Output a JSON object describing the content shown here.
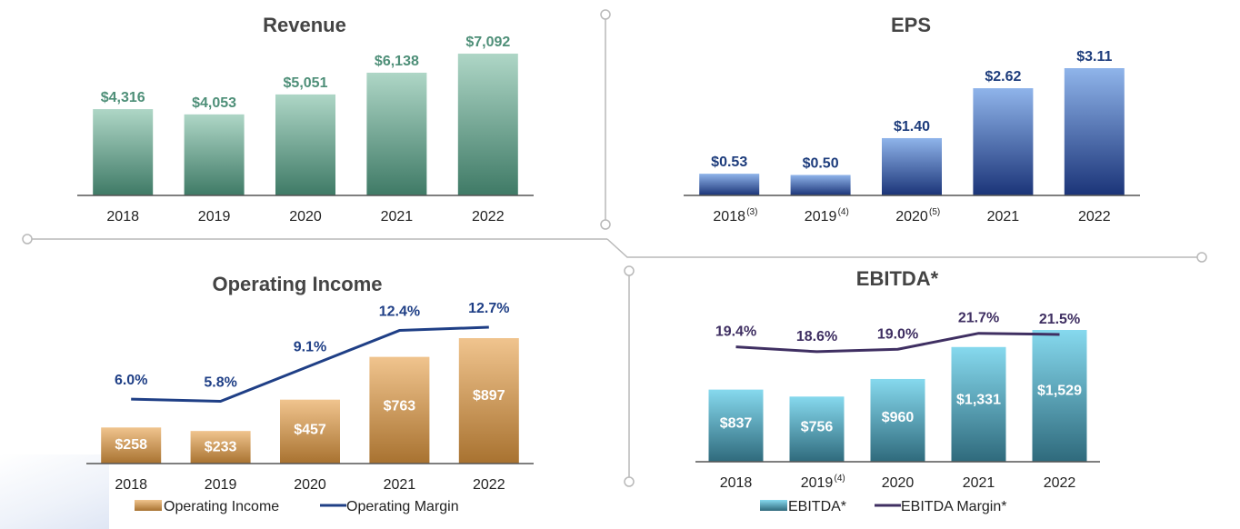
{
  "colors": {
    "revenue_top": "#aed6c6",
    "revenue_bottom": "#3f7a66",
    "revenue_label": "#4e8f78",
    "eps_top": "#8fb4ea",
    "eps_bottom": "#1b3478",
    "eps_label": "#1d3c7c",
    "opinc_top": "#f0c48e",
    "opinc_bottom": "#a87230",
    "opmargin_line": "#1f3f86",
    "ebitda_top": "#86d9ee",
    "ebitda_bottom": "#2f6a7c",
    "ebitda_margin_line": "#3f2f62",
    "divider": "#b9b9b9",
    "title": "#444444",
    "tick": "#222222"
  },
  "chart_data": [
    {
      "type": "bar",
      "title": "Revenue",
      "categories": [
        "2018",
        "2019",
        "2020",
        "2021",
        "2022"
      ],
      "values": [
        4316,
        4053,
        5051,
        6138,
        7092
      ],
      "value_labels": [
        "$4,316",
        "$4,053",
        "$5,051",
        "$6,138",
        "$7,092"
      ],
      "ylim": [
        0,
        7700
      ],
      "grid": false
    },
    {
      "type": "bar",
      "title": "EPS",
      "categories": [
        "2018",
        "2019",
        "2020",
        "2021",
        "2022"
      ],
      "footnotes": [
        "(3)",
        "(4)",
        "(5)",
        "",
        ""
      ],
      "values": [
        0.53,
        0.5,
        1.4,
        2.62,
        3.11
      ],
      "value_labels": [
        "$0.53",
        "$0.50",
        "$1.40",
        "$2.62",
        "$3.11"
      ],
      "ylim": [
        0,
        3.3
      ],
      "grid": false
    },
    {
      "type": "bar",
      "title": "Operating Income",
      "categories": [
        "2018",
        "2019",
        "2020",
        "2021",
        "2022"
      ],
      "series": [
        {
          "name": "Operating Income",
          "kind": "bar",
          "values": [
            258,
            233,
            457,
            763,
            897
          ],
          "labels": [
            "$258",
            "$233",
            "$457",
            "$763",
            "$897"
          ]
        },
        {
          "name": "Operating Margin",
          "kind": "line",
          "values": [
            6.0,
            5.8,
            9.1,
            12.4,
            12.7
          ],
          "labels": [
            "6.0%",
            "5.8%",
            "9.1%",
            "12.4%",
            "12.7%"
          ]
        }
      ],
      "bar_ylim": [
        0,
        1000
      ],
      "line_ylim": [
        0,
        13.6
      ],
      "legend": "bottom",
      "grid": false
    },
    {
      "type": "bar",
      "title": "EBITDA*",
      "categories": [
        "2018",
        "2019",
        "2020",
        "2021",
        "2022"
      ],
      "footnotes": [
        "",
        "(4)",
        "",
        "",
        ""
      ],
      "series": [
        {
          "name": "EBITDA*",
          "kind": "bar",
          "values": [
            837,
            756,
            960,
            1331,
            1529
          ],
          "labels": [
            "$837",
            "$756",
            "$960",
            "$1,331",
            "$1,529"
          ]
        },
        {
          "name": "EBITDA Margin*",
          "kind": "line",
          "values": [
            19.4,
            18.6,
            19.0,
            21.7,
            21.5
          ],
          "labels": [
            "19.4%",
            "18.6%",
            "19.0%",
            "21.7%",
            "21.5%"
          ]
        }
      ],
      "bar_ylim": [
        0,
        1600
      ],
      "line_ylim": [
        0,
        22
      ],
      "legend": "bottom",
      "grid": false
    }
  ]
}
